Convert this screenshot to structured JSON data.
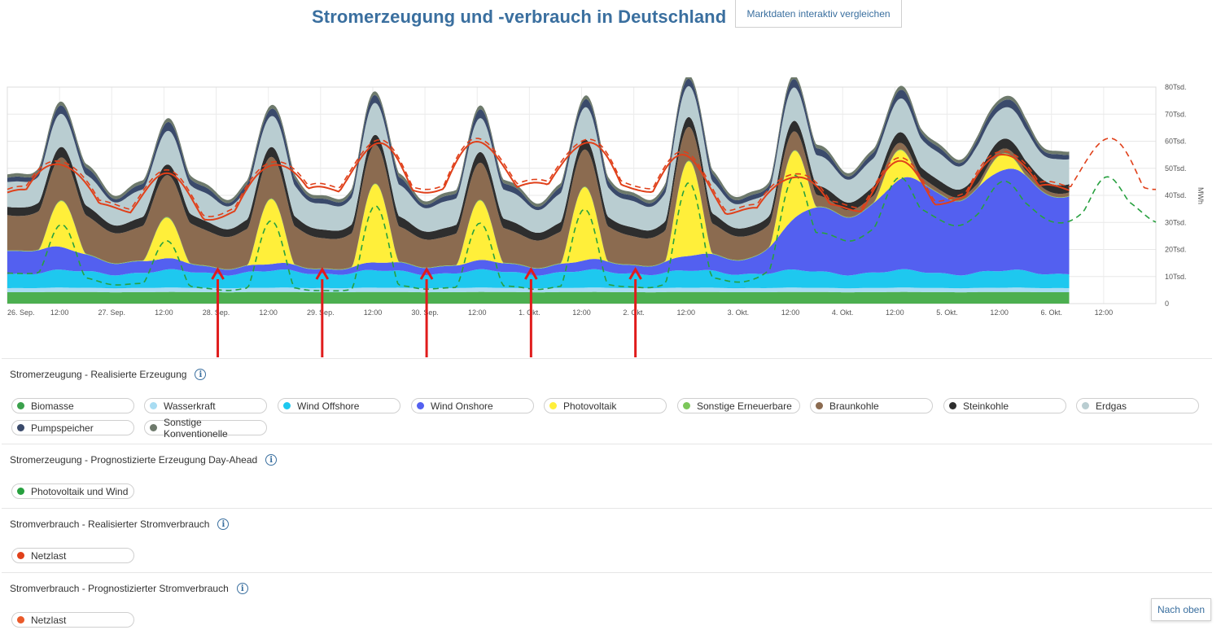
{
  "header": {
    "title": "Stromerzeugung und -verbrauch in Deutschland",
    "compare_button": "Marktdaten interaktiv vergleichen"
  },
  "chart_data": {
    "type": "area",
    "ylabel": "MWh",
    "ylim": [
      0,
      80000
    ],
    "yticks": [
      "0",
      "10Tsd.",
      "20Tsd.",
      "30Tsd.",
      "40Tsd.",
      "50Tsd.",
      "60Tsd.",
      "70Tsd.",
      "80Tsd."
    ],
    "ytick_values": [
      0,
      10000,
      20000,
      30000,
      40000,
      50000,
      60000,
      70000,
      80000
    ],
    "xlim": [
      0,
      11
    ],
    "xticks": [
      {
        "x": 0,
        "label": "26. Sep."
      },
      {
        "x": 0.5,
        "label": "12:00"
      },
      {
        "x": 1,
        "label": "27. Sep."
      },
      {
        "x": 1.5,
        "label": "12:00"
      },
      {
        "x": 2,
        "label": "28. Sep."
      },
      {
        "x": 2.5,
        "label": "12:00"
      },
      {
        "x": 3,
        "label": "29. Sep."
      },
      {
        "x": 3.5,
        "label": "12:00"
      },
      {
        "x": 4,
        "label": "30. Sep."
      },
      {
        "x": 4.5,
        "label": "12:00"
      },
      {
        "x": 5,
        "label": "1. Okt."
      },
      {
        "x": 5.5,
        "label": "12:00"
      },
      {
        "x": 6,
        "label": "2. Okt."
      },
      {
        "x": 6.5,
        "label": "12:00"
      },
      {
        "x": 7,
        "label": "3. Okt."
      },
      {
        "x": 7.5,
        "label": "12:00"
      },
      {
        "x": 8,
        "label": "4. Okt."
      },
      {
        "x": 8.5,
        "label": "12:00"
      },
      {
        "x": 9,
        "label": "5. Okt."
      },
      {
        "x": 9.5,
        "label": "12:00"
      },
      {
        "x": 10,
        "label": "6. Okt."
      },
      {
        "x": 10.5,
        "label": "12:00"
      }
    ],
    "realized_end": 10.17,
    "series_order": [
      "Biomasse",
      "Wasserkraft",
      "Wind Offshore",
      "Wind Onshore",
      "Photovoltaik",
      "Sonstige Erneuerbare",
      "Braunkohle",
      "Steinkohle",
      "Erdgas",
      "Pumpspeicher",
      "Sonstige Konventionelle"
    ],
    "series": [
      {
        "name": "Biomasse",
        "color": "#4caf50",
        "base": 4200,
        "amp": 100
      },
      {
        "name": "Wasserkraft",
        "color": "#a8dcf2",
        "base": 1500,
        "amp": 100
      },
      {
        "name": "Wind Offshore",
        "color": "#1ec8ef",
        "base": 5000,
        "amp": 1500
      },
      {
        "name": "Wind Onshore",
        "color": "#5360f0",
        "days": [
          {
            "d": 0,
            "v": 10000
          },
          {
            "d": 1,
            "v": 5000
          },
          {
            "d": 2,
            "v": 2500
          },
          {
            "d": 3,
            "v": 2000
          },
          {
            "d": 4,
            "v": 3000
          },
          {
            "d": 5,
            "v": 3000
          },
          {
            "d": 6,
            "v": 3500
          },
          {
            "d": 7,
            "v": 6000
          },
          {
            "d": 8,
            "v": 25000
          },
          {
            "d": 9,
            "v": 32000
          },
          {
            "d": 10,
            "v": 33000
          }
        ]
      },
      {
        "name": "Photovoltaik",
        "color": "#ffef3a",
        "peaks": [
          {
            "d": 0,
            "v": 17000
          },
          {
            "d": 1,
            "v": 15000
          },
          {
            "d": 2,
            "v": 24000
          },
          {
            "d": 3,
            "v": 29000
          },
          {
            "d": 4,
            "v": 22000
          },
          {
            "d": 5,
            "v": 27000
          },
          {
            "d": 6,
            "v": 35000
          },
          {
            "d": 7,
            "v": 25000
          },
          {
            "d": 8,
            "v": 11000
          },
          {
            "d": 9,
            "v": 6000
          },
          {
            "d": 10,
            "v": 7000
          }
        ]
      },
      {
        "name": "Sonstige Erneuerbare",
        "color": "#7cc75a",
        "base": 200,
        "amp": 50
      },
      {
        "name": "Braunkohle",
        "color": "#8b6b50",
        "days": [
          {
            "d": 0,
            "v": 15000
          },
          {
            "d": 1,
            "v": 13000
          },
          {
            "d": 2,
            "v": 14000
          },
          {
            "d": 3,
            "v": 13000
          },
          {
            "d": 4,
            "v": 12000
          },
          {
            "d": 5,
            "v": 12000
          },
          {
            "d": 6,
            "v": 12000
          },
          {
            "d": 7,
            "v": 10000
          },
          {
            "d": 8,
            "v": 3000
          },
          {
            "d": 9,
            "v": 1500
          },
          {
            "d": 10,
            "v": 1500
          }
        ]
      },
      {
        "name": "Steinkohle",
        "color": "#2e2e2e",
        "base": 3000,
        "amp": 800
      },
      {
        "name": "Erdgas",
        "color": "#b9cdd1",
        "base": 9000,
        "amp": 3000
      },
      {
        "name": "Pumpspeicher",
        "color": "#3a4a6b",
        "base": 1500,
        "amp": 1500
      },
      {
        "name": "Sonstige Konventionelle",
        "color": "#6e7a6c",
        "base": 1200,
        "amp": 200
      }
    ],
    "forecast_pv_wind": {
      "name": "Photovoltaik und Wind",
      "color": "#27a03f",
      "style": "dashed",
      "x_end": 11
    },
    "load_realized": {
      "name": "Netzlast",
      "color": "#e0401a",
      "style": "solid"
    },
    "load_forecast": {
      "name": "Netzlast",
      "color": "#e0401a",
      "style": "dashed",
      "x_end": 11
    },
    "load_days": [
      {
        "d": 0,
        "v": 57000
      },
      {
        "d": 1,
        "v": 49000
      },
      {
        "d": 2,
        "v": 45000
      },
      {
        "d": 3,
        "v": 58000
      },
      {
        "d": 4,
        "v": 59000
      },
      {
        "d": 5,
        "v": 60000
      },
      {
        "d": 6,
        "v": 60000
      },
      {
        "d": 7,
        "v": 47000
      },
      {
        "d": 8,
        "v": 49000
      },
      {
        "d": 9,
        "v": 53000
      },
      {
        "d": 10,
        "v": 59000
      }
    ],
    "annotation_arrows_x": [
      2,
      3,
      4,
      5,
      6
    ]
  },
  "legend_sections": [
    {
      "title": "Stromerzeugung - Realisierte Erzeugung",
      "items": [
        {
          "label": "Biomasse",
          "color": "#3aa14c"
        },
        {
          "label": "Wasserkraft",
          "color": "#a8dcf2"
        },
        {
          "label": "Wind Offshore",
          "color": "#1ec8ef"
        },
        {
          "label": "Wind Onshore",
          "color": "#5360f0"
        },
        {
          "label": "Photovoltaik",
          "color": "#ffef3a"
        },
        {
          "label": "Sonstige Erneuerbare",
          "color": "#7cc75a"
        },
        {
          "label": "Braunkohle",
          "color": "#8b6b50"
        },
        {
          "label": "Steinkohle",
          "color": "#2e2e2e"
        },
        {
          "label": "Erdgas",
          "color": "#b9cdd1"
        },
        {
          "label": "Pumpspeicher",
          "color": "#3a4a6b"
        },
        {
          "label": "Sonstige Konventionelle",
          "color": "#6e7a6c"
        }
      ]
    },
    {
      "title": "Stromerzeugung - Prognostizierte Erzeugung Day-Ahead",
      "items": [
        {
          "label": "Photovoltaik und Wind",
          "color": "#27a03f"
        }
      ]
    },
    {
      "title": "Stromverbrauch - Realisierter Stromverbrauch",
      "items": [
        {
          "label": "Netzlast",
          "color": "#e0401a"
        }
      ]
    },
    {
      "title": "Stromverbrauch - Prognostizierter Stromverbrauch",
      "items": [
        {
          "label": "Netzlast",
          "color": "#ea5a2a"
        }
      ]
    }
  ],
  "info_icon": "info-icon",
  "footer": {
    "back_to_top": "Nach oben"
  }
}
